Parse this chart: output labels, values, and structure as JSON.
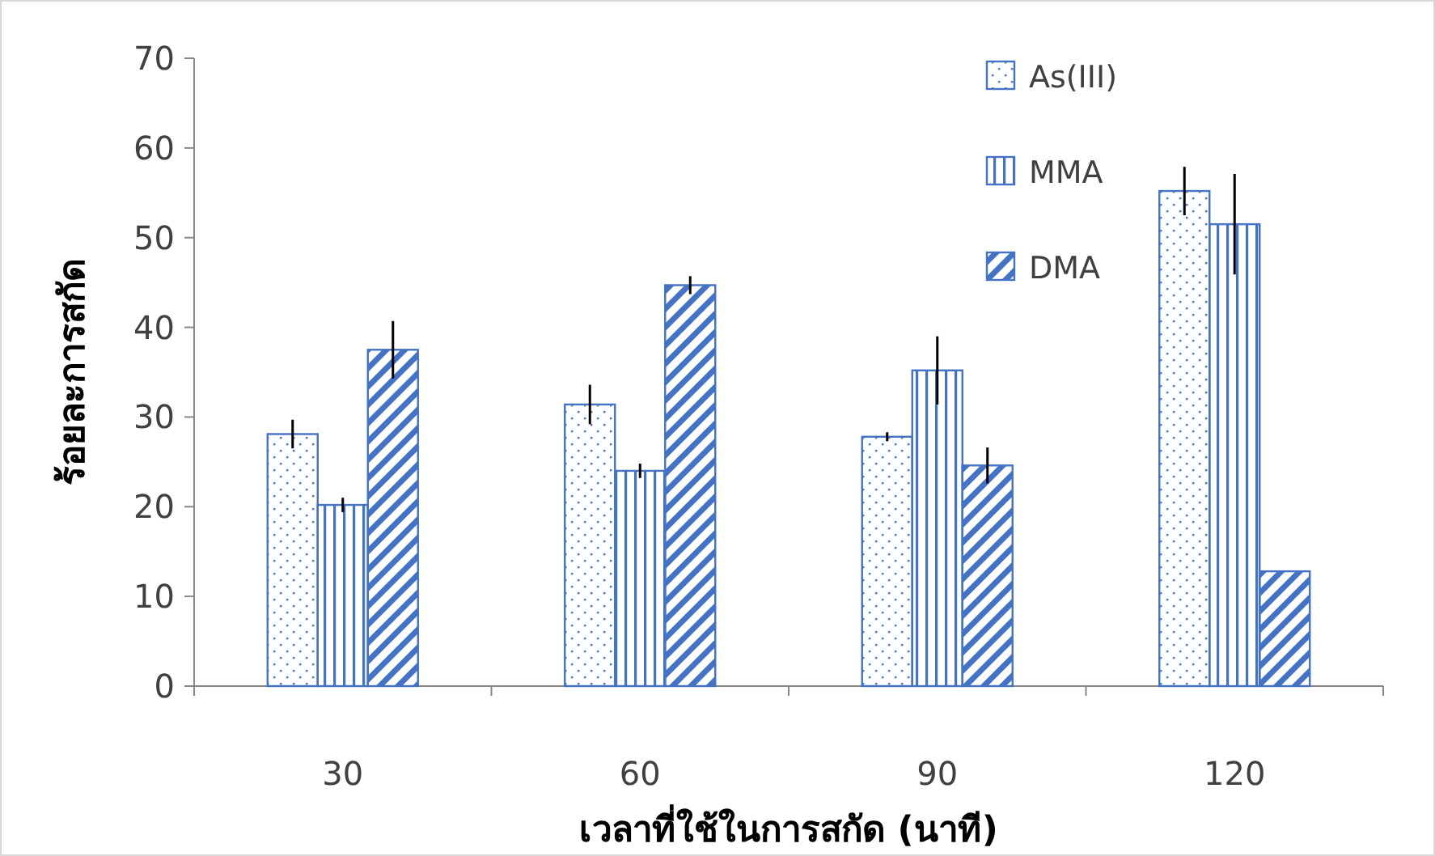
{
  "chart_data": {
    "type": "bar",
    "xlabel": "เวลาที่ใช้ในการสกัด  (นาที)",
    "ylabel": "ร้อยละการสกัด",
    "categories": [
      "30",
      "60",
      "90",
      "120"
    ],
    "series": [
      {
        "name": "As(III)",
        "color": "#4472c4",
        "values": [
          28.1,
          31.4,
          27.8,
          55.2
        ],
        "errors": [
          1.6,
          2.2,
          0.5,
          2.7
        ]
      },
      {
        "name": "MMA",
        "color": "#4472c4",
        "values": [
          20.2,
          24.0,
          35.2,
          51.5
        ],
        "errors": [
          0.8,
          0.8,
          3.8,
          5.6
        ]
      },
      {
        "name": "DMA",
        "color": "#4472c4",
        "values": [
          37.5,
          44.7,
          24.6,
          12.8
        ],
        "errors": [
          3.2,
          1.0,
          2.0,
          null
        ]
      }
    ],
    "ylim": [
      0,
      70
    ],
    "yticks": [
      0,
      10,
      20,
      30,
      40,
      50,
      60,
      70
    ],
    "grid": false,
    "legend": "top right"
  }
}
